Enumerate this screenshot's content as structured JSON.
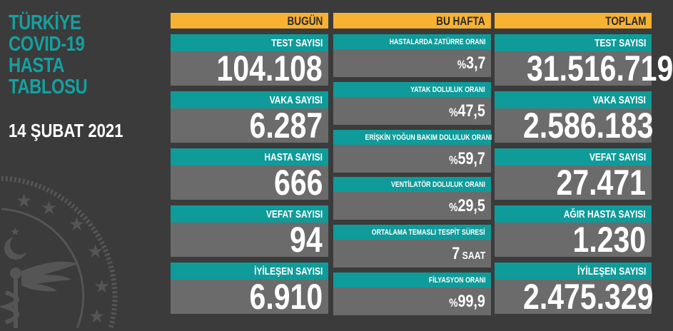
{
  "title_lines": [
    "TÜRKİYE",
    "COVID-19",
    "HASTA",
    "TABLOSU"
  ],
  "date": "14 ŞUBAT 2021",
  "colors": {
    "background": "#3b3b3b",
    "teal": "#0f9b9a",
    "orange": "#f7b133",
    "panel": "#6b6b6b"
  },
  "emblem_icon": "ministry-of-health-emblem",
  "today": {
    "header": "BUGÜN",
    "items": [
      {
        "label": "TEST SAYISI",
        "value": "104.108"
      },
      {
        "label": "VAKA SAYISI",
        "value": "6.287"
      },
      {
        "label": "HASTA SAYISI",
        "value": "666"
      },
      {
        "label": "VEFAT SAYISI",
        "value": "94"
      },
      {
        "label": "İYİLEŞEN SAYISI",
        "value": "6.910"
      }
    ]
  },
  "week": {
    "header": "BU HAFTA",
    "items": [
      {
        "label": "HASTALARDA ZATÜRRE ORANI",
        "prefix": "%",
        "value": "3,7"
      },
      {
        "label": "YATAK DOLULUK ORANI",
        "prefix": "%",
        "value": "47,5"
      },
      {
        "label": "ERİŞKİN YOĞUN BAKIM DOLULUK ORANI",
        "prefix": "%",
        "value": "59,7"
      },
      {
        "label": "VENTİLATÖR DOLULUK ORANI",
        "prefix": "%",
        "value": "29,5"
      },
      {
        "label": "ORTALAMA TEMASLI TESPİT SÜRESİ",
        "value": "7",
        "suffix": " SAAT"
      },
      {
        "label": "FİLYASYON ORANI",
        "prefix": "%",
        "value": "99,9"
      }
    ]
  },
  "total": {
    "header": "TOPLAM",
    "items": [
      {
        "label": "TEST SAYISI",
        "value": "31.516.719"
      },
      {
        "label": "VAKA SAYISI",
        "value": "2.586.183"
      },
      {
        "label": "VEFAT SAYISI",
        "value": "27.471"
      },
      {
        "label": "AĞIR HASTA SAYISI",
        "value": "1.230"
      },
      {
        "label": "İYİLEŞEN SAYISI",
        "value": "2.475.329"
      }
    ]
  }
}
